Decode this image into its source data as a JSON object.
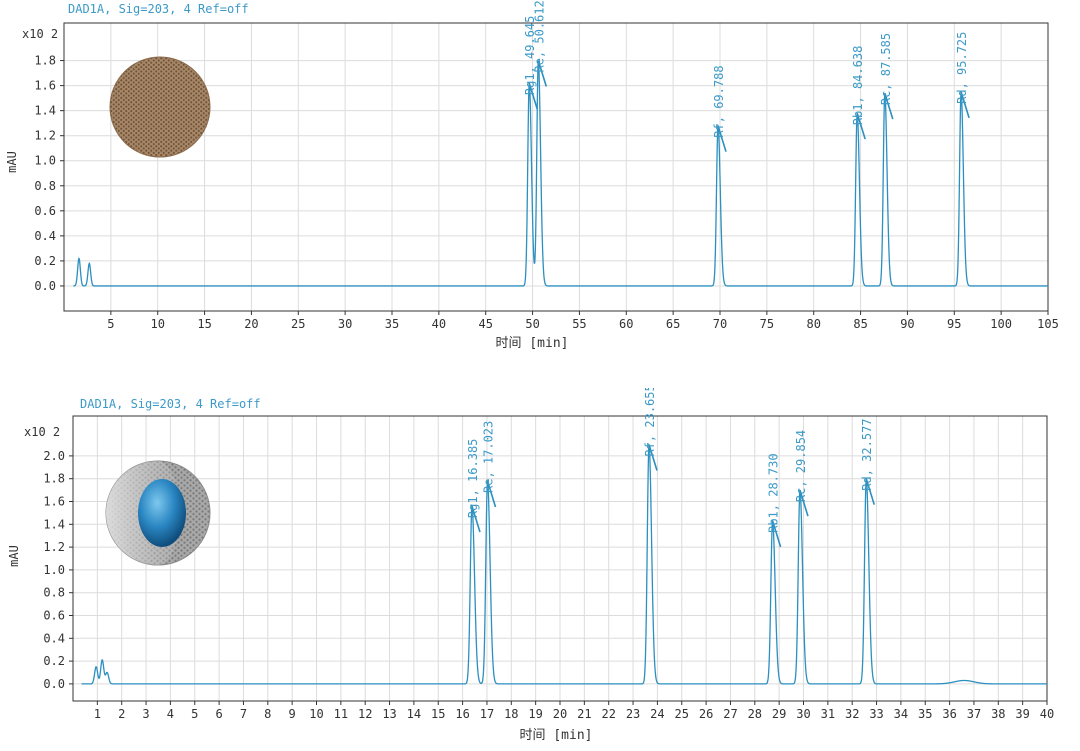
{
  "colors": {
    "trace": "#2b8fc0",
    "text": "#333333",
    "header_text": "#3c9ac8",
    "grid": "#dcdcdc",
    "axis": "#333333"
  },
  "chart_data": [
    {
      "type": "line",
      "header": "DAD1A, Sig=203, 4  Ref=off",
      "multiplier": "x10 2",
      "xlabel": "时间 [min]",
      "ylabel": "mAU",
      "xlim": [
        0,
        105
      ],
      "ylim": [
        -0.2,
        2.1
      ],
      "xticks": [
        5,
        10,
        15,
        20,
        25,
        30,
        35,
        40,
        45,
        50,
        55,
        60,
        65,
        70,
        75,
        80,
        85,
        90,
        95,
        100,
        105
      ],
      "yticks": [
        0.0,
        0.2,
        0.4,
        0.6,
        0.8,
        1.0,
        1.2,
        1.4,
        1.6,
        1.8
      ],
      "grid": true,
      "column_icon": "solid-particle-icon",
      "baseline": 0.0,
      "noise": [
        [
          1.6,
          0.22
        ],
        [
          2.7,
          0.18
        ]
      ],
      "peaks": [
        {
          "x": 49.645,
          "height": 1.62,
          "label": "Rg1, 49.645"
        },
        {
          "x": 50.612,
          "height": 1.8,
          "label": "Re, 50.612"
        },
        {
          "x": 69.788,
          "height": 1.28,
          "label": "Rf, 69.788"
        },
        {
          "x": 84.638,
          "height": 1.38,
          "label": "Rb1, 84.638"
        },
        {
          "x": 87.585,
          "height": 1.54,
          "label": "Rc, 87.585"
        },
        {
          "x": 95.725,
          "height": 1.55,
          "label": "Rd, 95.725"
        }
      ]
    },
    {
      "type": "line",
      "header": "DAD1A, Sig=203, 4  Ref=off",
      "multiplier": "x10 2",
      "xlabel": "时间 [min]",
      "ylabel": "mAU",
      "xlim": [
        0,
        40
      ],
      "ylim": [
        -0.15,
        2.35
      ],
      "xticks": [
        1,
        2,
        3,
        4,
        5,
        6,
        7,
        8,
        9,
        10,
        11,
        12,
        13,
        14,
        15,
        16,
        17,
        18,
        19,
        20,
        21,
        22,
        23,
        24,
        25,
        26,
        27,
        28,
        29,
        30,
        31,
        32,
        33,
        34,
        35,
        36,
        37,
        38,
        39,
        40
      ],
      "yticks": [
        0.0,
        0.2,
        0.4,
        0.6,
        0.8,
        1.0,
        1.2,
        1.4,
        1.6,
        1.8,
        2.0
      ],
      "grid": true,
      "column_icon": "core-shell-particle-icon",
      "baseline": 0.0,
      "noise": [
        [
          0.95,
          0.15
        ],
        [
          1.2,
          0.21
        ],
        [
          1.4,
          0.1
        ]
      ],
      "bump": {
        "x": 36.6,
        "height": 0.03
      },
      "peaks": [
        {
          "x": 16.385,
          "height": 1.56,
          "label": "Rg1, 16.385"
        },
        {
          "x": 17.023,
          "height": 1.78,
          "label": "Re, 17.023"
        },
        {
          "x": 23.655,
          "height": 2.1,
          "label": "Rf, 23.655"
        },
        {
          "x": 28.73,
          "height": 1.43,
          "label": "Rb1, 28.730"
        },
        {
          "x": 29.854,
          "height": 1.7,
          "label": "Rc, 29.854"
        },
        {
          "x": 32.577,
          "height": 1.8,
          "label": "Rd, 32.577"
        }
      ]
    }
  ]
}
